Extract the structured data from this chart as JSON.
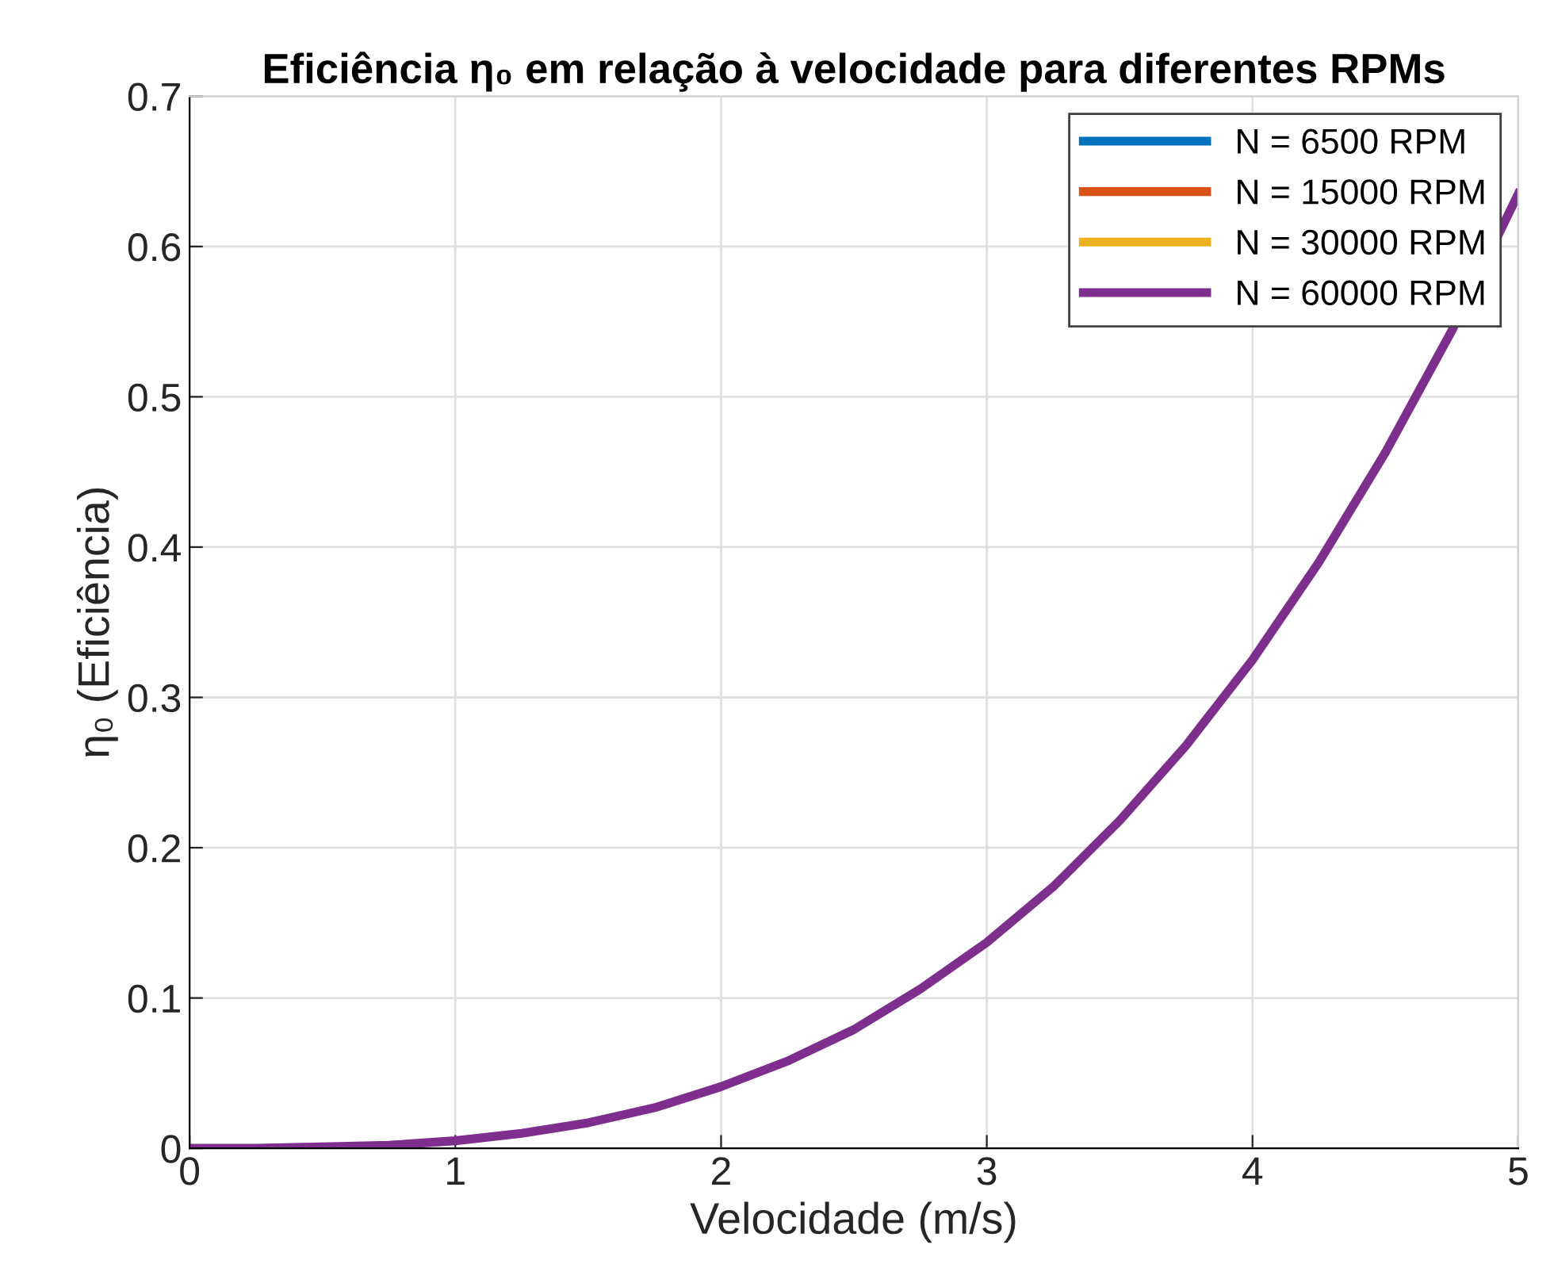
{
  "chart_data": {
    "type": "line",
    "title": "Eficiência η₀ em relação à velocidade para diferentes RPMs",
    "xlabel": "Velocidade (m/s)",
    "ylabel": "η₀ (Eficiência)",
    "x": [
      0,
      0.25,
      0.5,
      0.75,
      1,
      1.25,
      1.5,
      1.75,
      2,
      2.25,
      2.5,
      2.75,
      3,
      3.25,
      3.5,
      3.75,
      4,
      4.25,
      4.5,
      4.75,
      5
    ],
    "series": [
      {
        "name": "N = 6500 RPM",
        "color": "#0072bd",
        "values": [
          null,
          null,
          null,
          null,
          null,
          null,
          null,
          null,
          null,
          null,
          null,
          null,
          null,
          null,
          null,
          null,
          null,
          null,
          null,
          null,
          null
        ]
      },
      {
        "name": "N = 15000 RPM",
        "color": "#d95319",
        "values": [
          null,
          null,
          null,
          null,
          null,
          null,
          null,
          null,
          null,
          null,
          null,
          null,
          null,
          null,
          null,
          null,
          null,
          null,
          null,
          null,
          null
        ]
      },
      {
        "name": "N = 30000 RPM",
        "color": "#edb120",
        "values": [
          null,
          null,
          null,
          null,
          null,
          null,
          null,
          null,
          null,
          null,
          null,
          null,
          null,
          null,
          null,
          null,
          null,
          null,
          null,
          null,
          null
        ]
      },
      {
        "name": "N = 60000 RPM",
        "color": "#7e2f8e",
        "values": [
          0,
          0,
          0.001,
          0.002,
          0.005,
          0.01,
          0.017,
          0.027,
          0.041,
          0.058,
          0.079,
          0.106,
          0.137,
          0.174,
          0.218,
          0.268,
          0.325,
          0.39,
          0.463,
          0.544,
          0.635
        ]
      }
    ],
    "xlim": [
      0,
      5
    ],
    "xticks": [
      0,
      1,
      2,
      3,
      4,
      5
    ],
    "ylim": [
      0,
      0.7
    ],
    "yticks": [
      0,
      0.1,
      0.2,
      0.3,
      0.4,
      0.5,
      0.6,
      0.7
    ],
    "grid": true,
    "legend": "top right",
    "line_style": "solid",
    "marker": "none"
  }
}
